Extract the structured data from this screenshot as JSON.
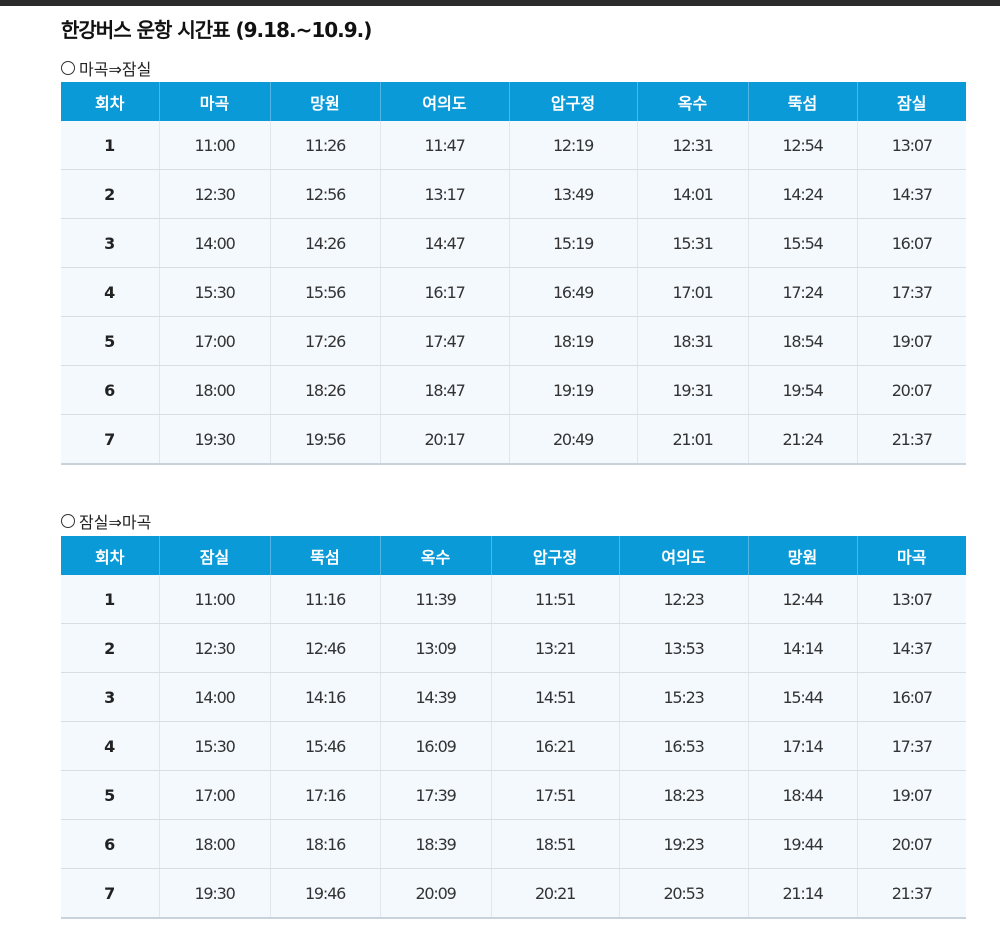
{
  "title": "한강버스 운항 시간표 (9.18.~10.9.)",
  "section1": {
    "label": "마곡⇒잠실",
    "headers": [
      "회차",
      "마곡",
      "망원",
      "여의도",
      "압구정",
      "옥수",
      "뚝섬",
      "잠실"
    ],
    "rows": [
      [
        "1",
        "11:00",
        "11:26",
        "11:47",
        "12:19",
        "12:31",
        "12:54",
        "13:07"
      ],
      [
        "2",
        "12:30",
        "12:56",
        "13:17",
        "13:49",
        "14:01",
        "14:24",
        "14:37"
      ],
      [
        "3",
        "14:00",
        "14:26",
        "14:47",
        "15:19",
        "15:31",
        "15:54",
        "16:07"
      ],
      [
        "4",
        "15:30",
        "15:56",
        "16:17",
        "16:49",
        "17:01",
        "17:24",
        "17:37"
      ],
      [
        "5",
        "17:00",
        "17:26",
        "17:47",
        "18:19",
        "18:31",
        "18:54",
        "19:07"
      ],
      [
        "6",
        "18:00",
        "18:26",
        "18:47",
        "19:19",
        "19:31",
        "19:54",
        "20:07"
      ],
      [
        "7",
        "19:30",
        "19:56",
        "20:17",
        "20:49",
        "21:01",
        "21:24",
        "21:37"
      ]
    ]
  },
  "section2": {
    "label": "잠실⇒마곡",
    "headers": [
      "회차",
      "잠실",
      "뚝섬",
      "옥수",
      "압구정",
      "여의도",
      "망원",
      "마곡"
    ],
    "rows": [
      [
        "1",
        "11:00",
        "11:16",
        "11:39",
        "11:51",
        "12:23",
        "12:44",
        "13:07"
      ],
      [
        "2",
        "12:30",
        "12:46",
        "13:09",
        "13:21",
        "13:53",
        "14:14",
        "14:37"
      ],
      [
        "3",
        "14:00",
        "14:16",
        "14:39",
        "14:51",
        "15:23",
        "15:44",
        "16:07"
      ],
      [
        "4",
        "15:30",
        "15:46",
        "16:09",
        "16:21",
        "16:53",
        "17:14",
        "17:37"
      ],
      [
        "5",
        "17:00",
        "17:16",
        "17:39",
        "17:51",
        "18:23",
        "18:44",
        "19:07"
      ],
      [
        "6",
        "18:00",
        "18:16",
        "18:39",
        "18:51",
        "19:23",
        "19:44",
        "20:07"
      ],
      [
        "7",
        "19:30",
        "19:46",
        "20:09",
        "20:21",
        "20:53",
        "21:14",
        "21:37"
      ]
    ]
  }
}
